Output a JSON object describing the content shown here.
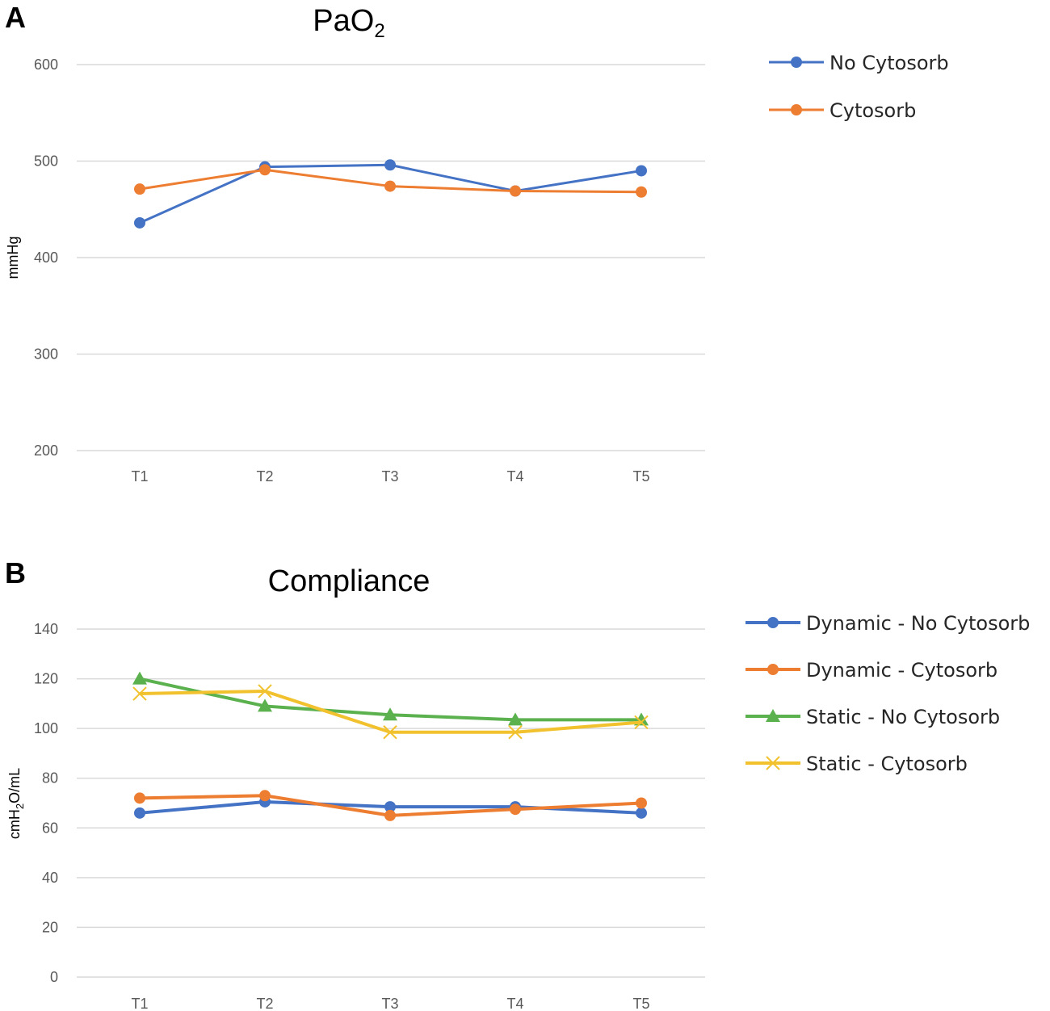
{
  "chart_data": [
    {
      "panel": "A",
      "type": "line",
      "title": "PaO",
      "title_subscript": "2",
      "ylabel": "mmHg",
      "xlabel": "",
      "categories": [
        "T1",
        "T2",
        "T3",
        "T4",
        "T5"
      ],
      "ylim": [
        200,
        600
      ],
      "yticks": [
        200,
        300,
        400,
        500,
        600
      ],
      "grid": true,
      "legend_position": "top-right",
      "series": [
        {
          "name": "No Cytosorb",
          "color": "#4472C4",
          "marker": "circle",
          "values": [
            436,
            494,
            496,
            469,
            490
          ]
        },
        {
          "name": "Cytosorb",
          "color": "#ED7D31",
          "marker": "circle",
          "values": [
            471,
            491,
            474,
            469,
            468
          ]
        }
      ]
    },
    {
      "panel": "B",
      "type": "line",
      "title": "Compliance",
      "ylabel_parts": [
        "cmH",
        "2",
        "O/mL"
      ],
      "xlabel": "",
      "categories": [
        "T1",
        "T2",
        "T3",
        "T4",
        "T5"
      ],
      "ylim": [
        0,
        140
      ],
      "yticks": [
        0,
        20,
        40,
        60,
        80,
        100,
        120,
        140
      ],
      "grid": true,
      "legend_position": "top-right",
      "series": [
        {
          "name": "Dynamic - No Cytosorb",
          "color": "#4472C4",
          "marker": "circle",
          "values": [
            66,
            70.5,
            68.5,
            68.5,
            66
          ]
        },
        {
          "name": "Dynamic - Cytosorb",
          "color": "#ED7D31",
          "marker": "circle",
          "values": [
            72,
            73,
            65,
            67.5,
            70
          ]
        },
        {
          "name": "Static - No Cytosorb",
          "color": "#5BB14E",
          "marker": "triangle",
          "values": [
            120,
            109,
            105.5,
            103.5,
            103.5
          ]
        },
        {
          "name": "Static - Cytosorb",
          "color": "#F2C12E",
          "marker": "x",
          "values": [
            114,
            115,
            98.5,
            98.5,
            102.5
          ]
        }
      ]
    }
  ]
}
